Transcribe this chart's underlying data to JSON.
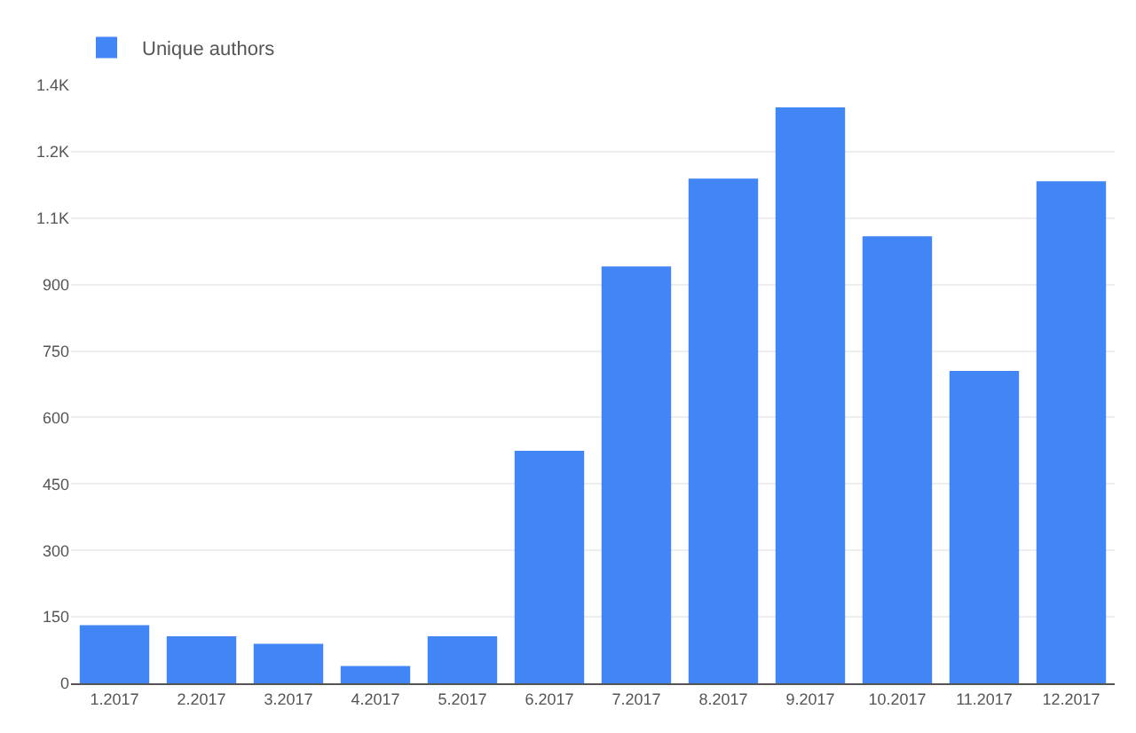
{
  "chart_data": {
    "type": "bar",
    "categories": [
      "1.2017",
      "2.2017",
      "3.2017",
      "4.2017",
      "5.2017",
      "6.2017",
      "7.2017",
      "8.2017",
      "9.2017",
      "10.2017",
      "11.2017",
      "12.2017"
    ],
    "series": [
      {
        "name": "Unique authors",
        "color": "#4285f4",
        "values": [
          131,
          106,
          89,
          39,
          106,
          525,
          941,
          1139,
          1300,
          1009,
          705,
          1133
        ]
      }
    ],
    "ylim": [
      0,
      1350
    ],
    "yticks": [
      0,
      150,
      300,
      450,
      600,
      750,
      900,
      {
        "value": 1050,
        "label": "1.1K"
      },
      {
        "value": 1200,
        "label": "1.2K"
      },
      {
        "value": 1350,
        "label": "1.4K"
      }
    ],
    "grid": "y",
    "legend": "top left"
  }
}
